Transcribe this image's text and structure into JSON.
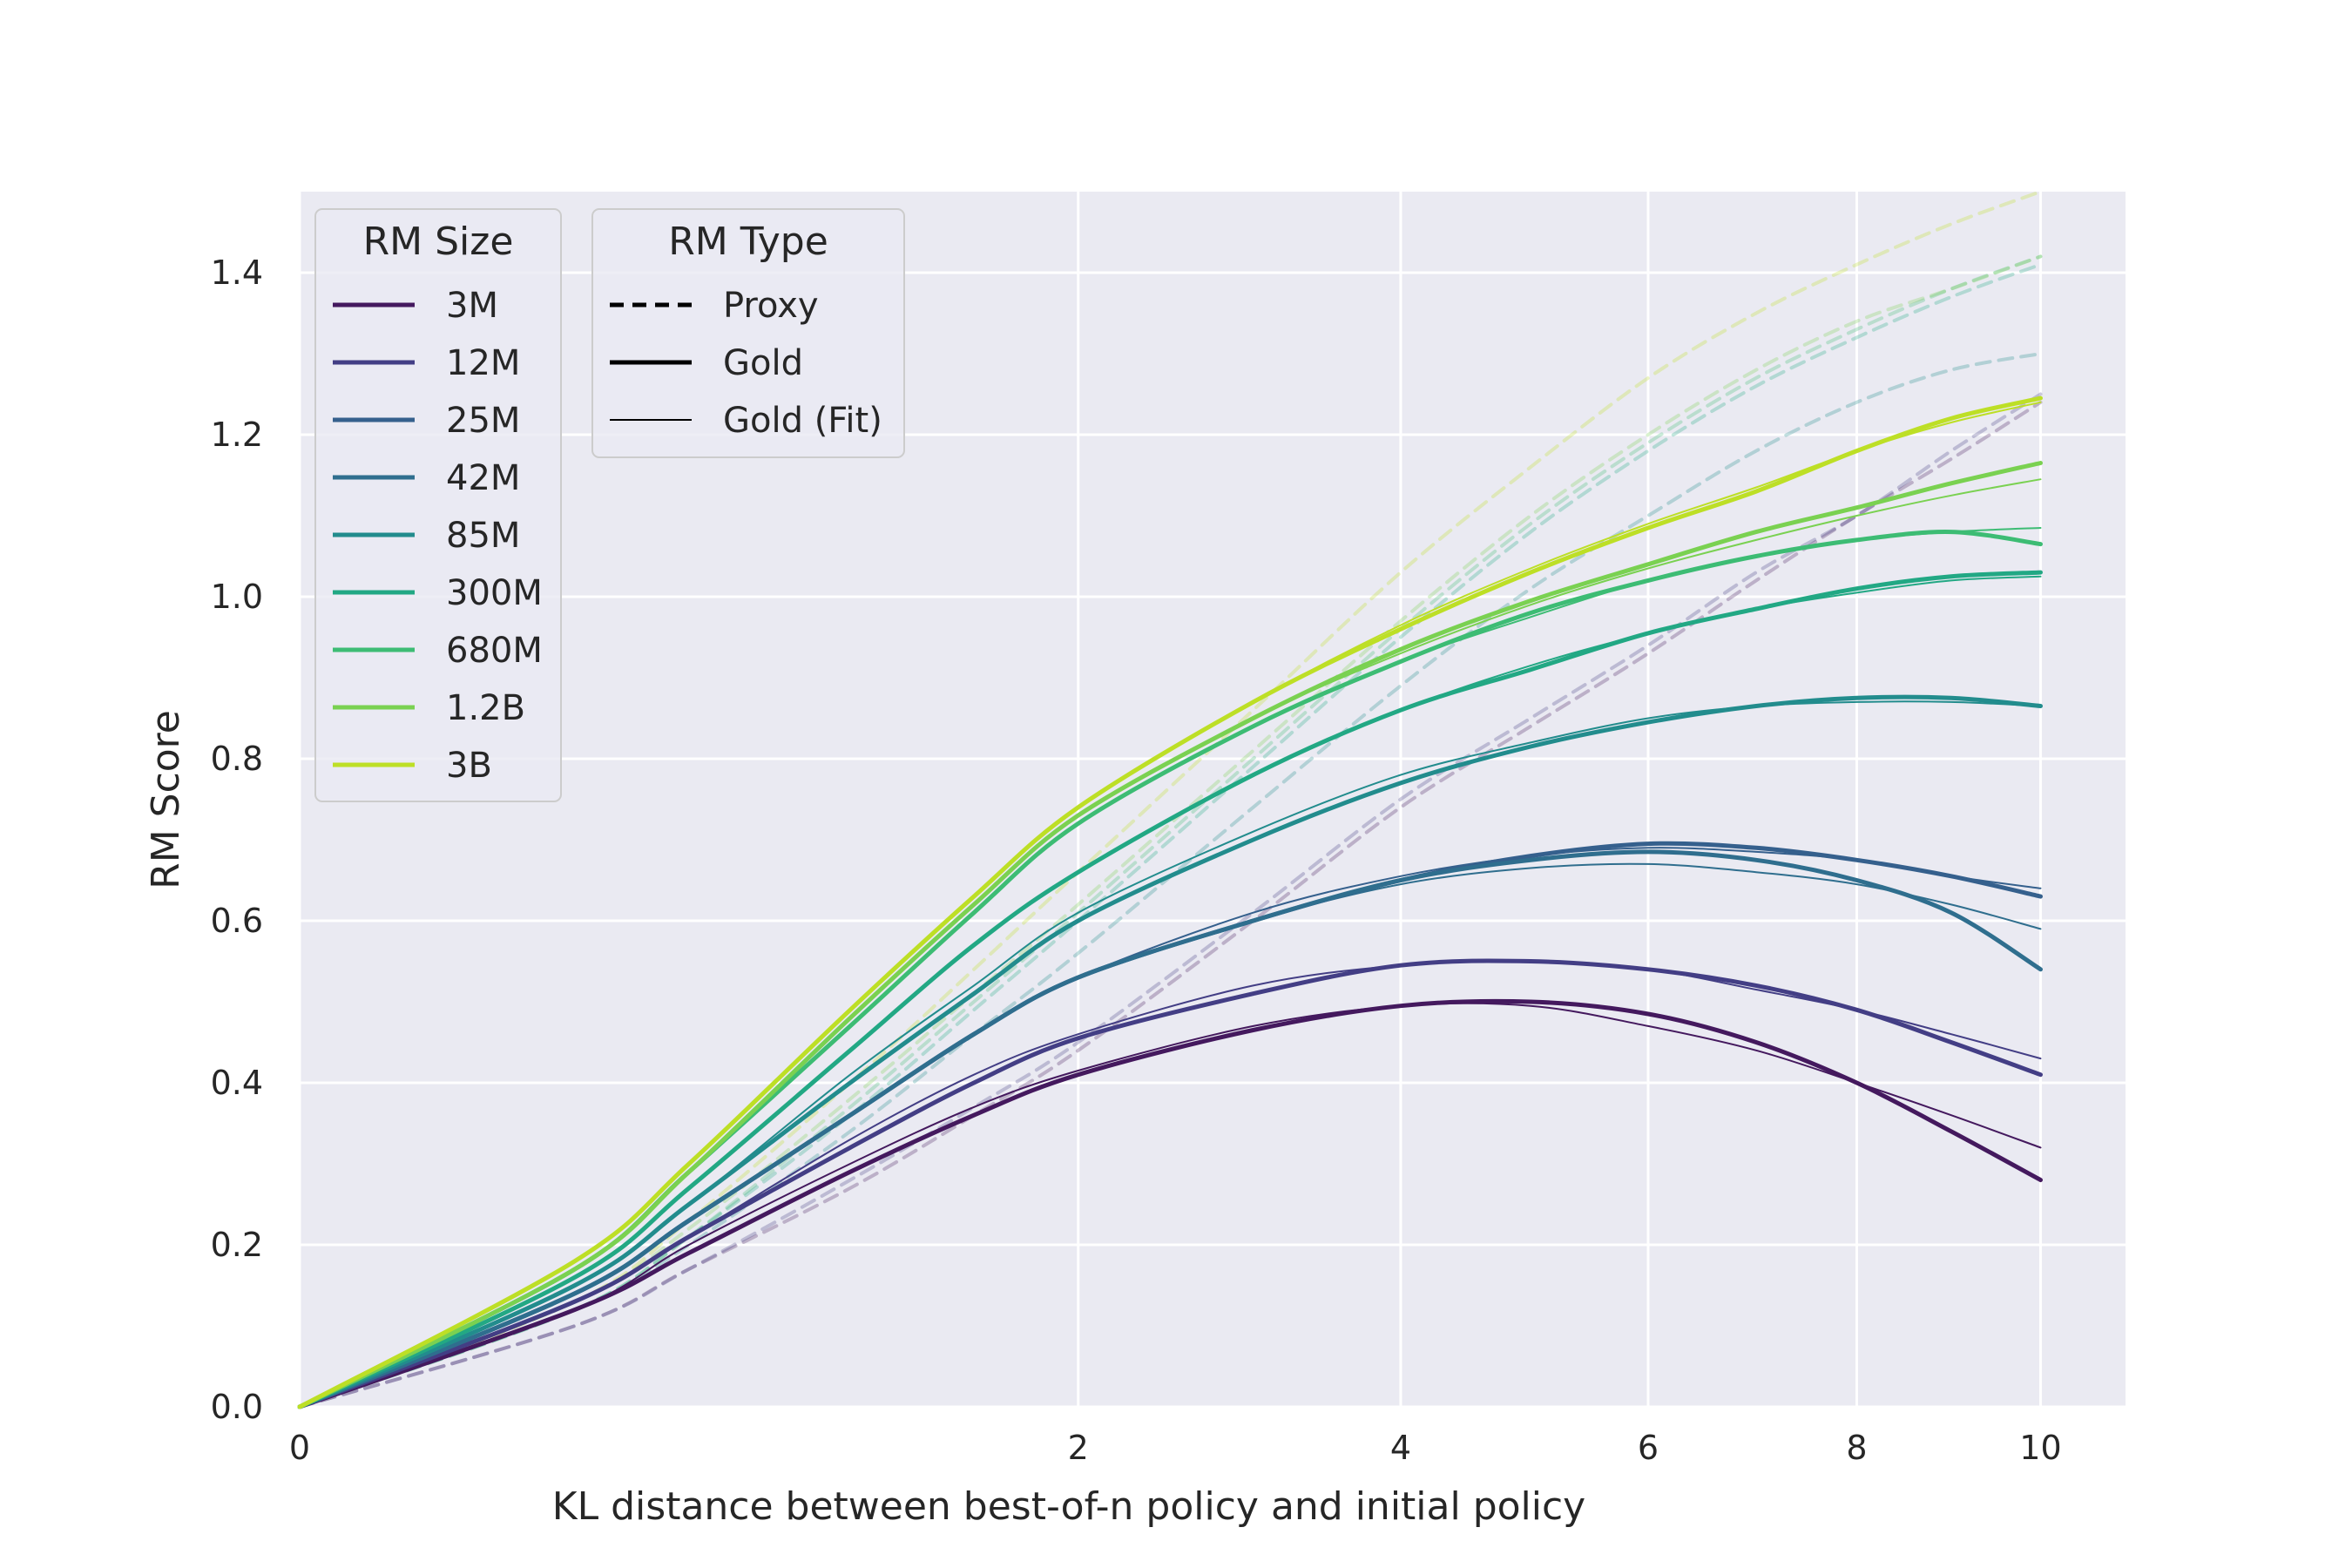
{
  "chart_data": {
    "type": "line",
    "xlabel": "KL distance between best-of-n policy and initial policy",
    "ylabel": "RM Score",
    "x_scale": "sqrt",
    "xlim": [
      0,
      11
    ],
    "ylim": [
      0,
      1.5
    ],
    "x_ticks": [
      0,
      2,
      4,
      6,
      8,
      10
    ],
    "y_ticks": [
      0.0,
      0.2,
      0.4,
      0.6,
      0.8,
      1.0,
      1.2,
      1.4
    ],
    "x_tick_labels": [
      "0",
      "2",
      "4",
      "6",
      "8",
      "10"
    ],
    "y_tick_labels": [
      "0.0",
      "0.2",
      "0.4",
      "0.6",
      "0.8",
      "1.0",
      "1.2",
      "1.4"
    ],
    "grid": true,
    "legend_size": {
      "title": "RM Size",
      "placement": "top-left",
      "entries": [
        {
          "label": "3M",
          "color": "#44195e"
        },
        {
          "label": "12M",
          "color": "#433e85"
        },
        {
          "label": "25M",
          "color": "#35608d"
        },
        {
          "label": "42M",
          "color": "#2f6e8e"
        },
        {
          "label": "85M",
          "color": "#228c8d"
        },
        {
          "label": "300M",
          "color": "#22a884"
        },
        {
          "label": "680M",
          "color": "#3dbc74"
        },
        {
          "label": "1.2B",
          "color": "#7ad151"
        },
        {
          "label": "3B",
          "color": "#bddf26"
        }
      ]
    },
    "legend_type": {
      "title": "RM Type",
      "placement": "top-left",
      "entries": [
        {
          "label": "Proxy",
          "style": "dashed"
        },
        {
          "label": "Gold",
          "style": "solid"
        },
        {
          "label": "Gold (Fit)",
          "style": "thin"
        }
      ]
    },
    "x": [
      0,
      0.25,
      0.5,
      1,
      1.5,
      2,
      3,
      4,
      5,
      6,
      7,
      8,
      9,
      10
    ],
    "series": [
      {
        "name": "3M",
        "type": "Gold",
        "color": "#44195e",
        "values": [
          0,
          0.12,
          0.19,
          0.29,
          0.36,
          0.41,
          0.465,
          0.495,
          0.5,
          0.485,
          0.45,
          0.4,
          0.34,
          0.28
        ]
      },
      {
        "name": "3M",
        "type": "Gold (Fit)",
        "color": "#44195e",
        "values": [
          0,
          0.12,
          0.2,
          0.3,
          0.37,
          0.415,
          0.47,
          0.495,
          0.495,
          0.47,
          0.44,
          0.4,
          0.36,
          0.32
        ]
      },
      {
        "name": "3M",
        "type": "Proxy",
        "color": "#44195e",
        "values": [
          0,
          0.1,
          0.17,
          0.27,
          0.36,
          0.44,
          0.6,
          0.74,
          0.84,
          0.93,
          1.02,
          1.1,
          1.17,
          1.24
        ]
      },
      {
        "name": "12M",
        "type": "Gold",
        "color": "#433e85",
        "values": [
          0,
          0.13,
          0.21,
          0.32,
          0.4,
          0.455,
          0.51,
          0.545,
          0.55,
          0.54,
          0.52,
          0.49,
          0.45,
          0.41
        ]
      },
      {
        "name": "12M",
        "type": "Gold (Fit)",
        "color": "#433e85",
        "values": [
          0,
          0.13,
          0.21,
          0.33,
          0.41,
          0.46,
          0.52,
          0.545,
          0.55,
          0.54,
          0.515,
          0.49,
          0.46,
          0.43
        ]
      },
      {
        "name": "12M",
        "type": "Proxy",
        "color": "#433e85",
        "values": [
          0,
          0.1,
          0.17,
          0.28,
          0.37,
          0.45,
          0.61,
          0.75,
          0.85,
          0.94,
          1.03,
          1.1,
          1.18,
          1.25
        ]
      },
      {
        "name": "25M",
        "type": "Gold",
        "color": "#35608d",
        "values": [
          0,
          0.14,
          0.23,
          0.36,
          0.46,
          0.53,
          0.6,
          0.65,
          0.68,
          0.695,
          0.69,
          0.675,
          0.655,
          0.63
        ]
      },
      {
        "name": "25M",
        "type": "Gold (Fit)",
        "color": "#35608d",
        "values": [
          0,
          0.14,
          0.23,
          0.36,
          0.46,
          0.53,
          0.61,
          0.655,
          0.68,
          0.69,
          0.685,
          0.675,
          0.655,
          0.64
        ]
      },
      {
        "name": "42M",
        "type": "Gold",
        "color": "#2f6e8e",
        "values": [
          0,
          0.14,
          0.23,
          0.36,
          0.46,
          0.53,
          0.6,
          0.65,
          0.675,
          0.685,
          0.675,
          0.65,
          0.61,
          0.54
        ]
      },
      {
        "name": "42M",
        "type": "Gold (Fit)",
        "color": "#2f6e8e",
        "values": [
          0,
          0.14,
          0.23,
          0.36,
          0.46,
          0.53,
          0.6,
          0.645,
          0.665,
          0.67,
          0.66,
          0.645,
          0.62,
          0.59
        ]
      },
      {
        "name": "85M",
        "type": "Gold",
        "color": "#228c8d",
        "values": [
          0,
          0.15,
          0.25,
          0.4,
          0.51,
          0.6,
          0.7,
          0.77,
          0.815,
          0.845,
          0.865,
          0.875,
          0.875,
          0.865
        ]
      },
      {
        "name": "85M",
        "type": "Gold (Fit)",
        "color": "#228c8d",
        "values": [
          0,
          0.15,
          0.25,
          0.41,
          0.52,
          0.61,
          0.71,
          0.78,
          0.82,
          0.85,
          0.865,
          0.87,
          0.87,
          0.865
        ]
      },
      {
        "name": "85M",
        "type": "Proxy",
        "color": "#228c8d",
        "values": [
          0,
          0.12,
          0.2,
          0.34,
          0.46,
          0.56,
          0.74,
          0.89,
          1.01,
          1.1,
          1.18,
          1.24,
          1.28,
          1.3
        ]
      },
      {
        "name": "300M",
        "type": "Gold",
        "color": "#22a884",
        "values": [
          0,
          0.16,
          0.27,
          0.44,
          0.57,
          0.66,
          0.78,
          0.86,
          0.91,
          0.955,
          0.985,
          1.01,
          1.025,
          1.03
        ]
      },
      {
        "name": "300M",
        "type": "Gold (Fit)",
        "color": "#22a884",
        "values": [
          0,
          0.16,
          0.27,
          0.44,
          0.57,
          0.66,
          0.78,
          0.86,
          0.915,
          0.955,
          0.985,
          1.005,
          1.02,
          1.025
        ]
      },
      {
        "name": "300M",
        "type": "Proxy",
        "color": "#22a884",
        "values": [
          0,
          0.12,
          0.21,
          0.36,
          0.49,
          0.6,
          0.79,
          0.95,
          1.08,
          1.18,
          1.26,
          1.32,
          1.37,
          1.41
        ]
      },
      {
        "name": "680M",
        "type": "Gold",
        "color": "#3dbc74",
        "values": [
          0,
          0.17,
          0.29,
          0.47,
          0.61,
          0.72,
          0.84,
          0.92,
          0.98,
          1.02,
          1.05,
          1.07,
          1.08,
          1.065
        ]
      },
      {
        "name": "680M",
        "type": "Gold (Fit)",
        "color": "#3dbc74",
        "values": [
          0,
          0.17,
          0.29,
          0.47,
          0.61,
          0.72,
          0.84,
          0.92,
          0.975,
          1.02,
          1.05,
          1.07,
          1.08,
          1.085
        ]
      },
      {
        "name": "680M",
        "type": "Proxy",
        "color": "#3dbc74",
        "values": [
          0,
          0.12,
          0.21,
          0.37,
          0.5,
          0.61,
          0.8,
          0.96,
          1.09,
          1.19,
          1.27,
          1.33,
          1.38,
          1.42
        ]
      },
      {
        "name": "1.2B",
        "type": "Gold",
        "color": "#7ad151",
        "values": [
          0,
          0.17,
          0.29,
          0.48,
          0.62,
          0.73,
          0.85,
          0.935,
          0.995,
          1.04,
          1.08,
          1.11,
          1.14,
          1.165
        ]
      },
      {
        "name": "1.2B",
        "type": "Gold (Fit)",
        "color": "#7ad151",
        "values": [
          0,
          0.17,
          0.29,
          0.48,
          0.62,
          0.73,
          0.85,
          0.93,
          0.99,
          1.035,
          1.07,
          1.1,
          1.125,
          1.145
        ]
      },
      {
        "name": "1.2B",
        "type": "Proxy",
        "color": "#7ad151",
        "values": [
          0,
          0.13,
          0.22,
          0.38,
          0.51,
          0.62,
          0.81,
          0.97,
          1.1,
          1.2,
          1.28,
          1.34,
          1.38,
          1.42
        ]
      },
      {
        "name": "3B",
        "type": "Gold",
        "color": "#bddf26",
        "values": [
          0,
          0.18,
          0.3,
          0.49,
          0.63,
          0.74,
          0.87,
          0.96,
          1.03,
          1.085,
          1.13,
          1.18,
          1.22,
          1.245
        ]
      },
      {
        "name": "3B",
        "type": "Gold (Fit)",
        "color": "#bddf26",
        "values": [
          0,
          0.18,
          0.3,
          0.49,
          0.63,
          0.74,
          0.87,
          0.965,
          1.035,
          1.09,
          1.135,
          1.18,
          1.215,
          1.24
        ]
      },
      {
        "name": "3B",
        "type": "Proxy",
        "color": "#bddf26",
        "values": [
          0,
          0.13,
          0.23,
          0.4,
          0.54,
          0.66,
          0.86,
          1.03,
          1.16,
          1.27,
          1.35,
          1.41,
          1.46,
          1.5
        ]
      }
    ]
  },
  "colors": {
    "plot_background": "#eaeaf2",
    "grid": "#ffffff",
    "text": "#262626"
  }
}
